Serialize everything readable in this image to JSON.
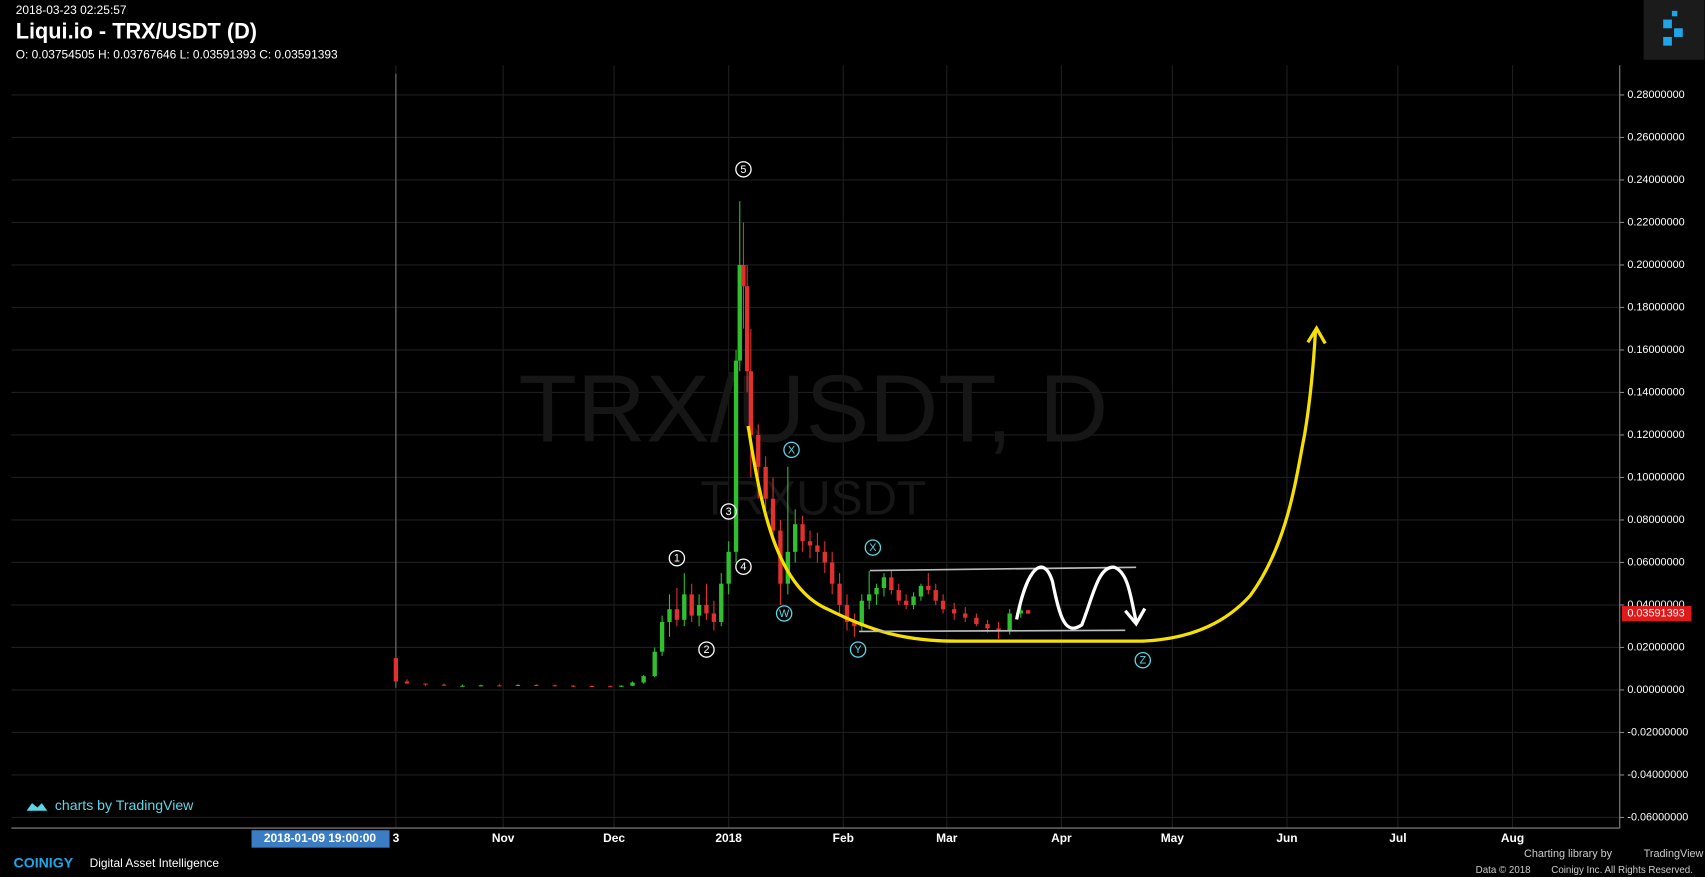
{
  "chart_data": {
    "type": "candlestick",
    "timestamp": "2018-03-23 02:25:57",
    "title": "Liqui.io - TRX/USDT (D)",
    "ohlc_text": "O: 0.03754505 H: 0.03767646 L: 0.03591393 C: 0.03591393",
    "watermark": "TRX/USDT, D",
    "watermark_sub": "TRXUSDT",
    "branding": "charts by TradingView",
    "crosshair_label": "2018-01-09 19:00:00",
    "last_price": 0.03591393,
    "up_color": "#2fbf2f",
    "down_color": "#e0312f",
    "footer": {
      "logo": "COINIGY",
      "tagline": "Digital Asset Intelligence",
      "library": "Charting library by",
      "library_name": "TradingView",
      "data": "Data © 2018",
      "rights": "Coinigy Inc. All Rights Reserved."
    },
    "xlim": [
      -102,
      333
    ],
    "xticks": [
      {
        "value": 2,
        "label": "3"
      },
      {
        "value": 31,
        "label": "Nov"
      },
      {
        "value": 61,
        "label": "Dec"
      },
      {
        "value": 92,
        "label": "2018"
      },
      {
        "value": 123,
        "label": "Feb"
      },
      {
        "value": 151,
        "label": "Mar"
      },
      {
        "value": 182,
        "label": "Apr"
      },
      {
        "value": 212,
        "label": "May"
      },
      {
        "value": 243,
        "label": "Jun"
      },
      {
        "value": 273,
        "label": "Jul"
      },
      {
        "value": 304,
        "label": "Aug"
      }
    ],
    "ylim": [
      -0.065,
      0.294
    ],
    "yticks": [
      {
        "value": -0.06,
        "label": "-0.06000000"
      },
      {
        "value": -0.04,
        "label": "-0.04000000"
      },
      {
        "value": -0.02,
        "label": "-0.02000000"
      },
      {
        "value": 0,
        "label": "0.00000000"
      },
      {
        "value": 0.02,
        "label": "0.02000000"
      },
      {
        "value": 0.04,
        "label": "0.04000000"
      },
      {
        "value": 0.06,
        "label": "0.06000000"
      },
      {
        "value": 0.08,
        "label": "0.08000000"
      },
      {
        "value": 0.1,
        "label": "0.10000000"
      },
      {
        "value": 0.12,
        "label": "0.12000000"
      },
      {
        "value": 0.14,
        "label": "0.14000000"
      },
      {
        "value": 0.16,
        "label": "0.16000000"
      },
      {
        "value": 0.18,
        "label": "0.18000000"
      },
      {
        "value": 0.2,
        "label": "0.20000000"
      },
      {
        "value": 0.22,
        "label": "0.22000000"
      },
      {
        "value": 0.24,
        "label": "0.24000000"
      },
      {
        "value": 0.26,
        "label": "0.26000000"
      },
      {
        "value": 0.28,
        "label": "0.28000000"
      }
    ],
    "grid": true,
    "x": [
      2,
      5,
      10,
      15,
      20,
      25,
      30,
      35,
      40,
      45,
      50,
      55,
      60,
      63,
      66,
      69,
      72,
      74,
      76,
      78,
      80,
      82,
      84,
      86,
      88,
      90,
      92,
      94,
      95,
      96,
      97,
      98,
      100,
      102,
      104,
      106,
      108,
      110,
      112,
      114,
      116,
      118,
      120,
      122,
      124,
      126,
      128,
      130,
      132,
      134,
      136,
      138,
      140,
      142,
      144,
      146,
      148,
      150,
      153,
      156,
      159,
      162,
      165,
      168,
      171,
      173
    ],
    "open": [
      0.015,
      0.004,
      0.003,
      0.0025,
      0.002,
      0.002,
      0.0022,
      0.0021,
      0.0024,
      0.0022,
      0.002,
      0.0019,
      0.0018,
      0.0017,
      0.002,
      0.0035,
      0.0065,
      0.018,
      0.032,
      0.038,
      0.033,
      0.045,
      0.035,
      0.04,
      0.036,
      0.032,
      0.05,
      0.065,
      0.155,
      0.2,
      0.19,
      0.15,
      0.12,
      0.105,
      0.09,
      0.075,
      0.05,
      0.065,
      0.078,
      0.07,
      0.068,
      0.065,
      0.06,
      0.05,
      0.04,
      0.032,
      0.03,
      0.042,
      0.045,
      0.048,
      0.053,
      0.047,
      0.042,
      0.04,
      0.044,
      0.049,
      0.047,
      0.042,
      0.038,
      0.036,
      0.034,
      0.031,
      0.029,
      0.028,
      0.036,
      0.03754505
    ],
    "high": [
      0.29,
      0.005,
      0.003,
      0.003,
      0.0025,
      0.0025,
      0.0026,
      0.0026,
      0.0027,
      0.0025,
      0.0023,
      0.0022,
      0.0021,
      0.0022,
      0.004,
      0.007,
      0.02,
      0.035,
      0.045,
      0.048,
      0.055,
      0.05,
      0.045,
      0.05,
      0.042,
      0.055,
      0.07,
      0.16,
      0.23,
      0.22,
      0.2,
      0.17,
      0.125,
      0.11,
      0.1,
      0.08,
      0.105,
      0.085,
      0.082,
      0.075,
      0.074,
      0.07,
      0.065,
      0.055,
      0.045,
      0.036,
      0.045,
      0.056,
      0.05,
      0.055,
      0.056,
      0.05,
      0.045,
      0.046,
      0.05,
      0.055,
      0.05,
      0.045,
      0.041,
      0.039,
      0.036,
      0.033,
      0.032,
      0.038,
      0.04,
      0.03767646
    ],
    "low": [
      0.001,
      0.003,
      0.002,
      0.002,
      0.0018,
      0.0018,
      0.002,
      0.0019,
      0.002,
      0.0019,
      0.0017,
      0.0016,
      0.0015,
      0.0015,
      0.0018,
      0.003,
      0.006,
      0.016,
      0.025,
      0.03,
      0.03,
      0.032,
      0.03,
      0.033,
      0.028,
      0.03,
      0.045,
      0.06,
      0.15,
      0.17,
      0.14,
      0.1,
      0.09,
      0.085,
      0.07,
      0.04,
      0.045,
      0.06,
      0.065,
      0.062,
      0.06,
      0.055,
      0.045,
      0.035,
      0.028,
      0.025,
      0.028,
      0.038,
      0.04,
      0.044,
      0.045,
      0.04,
      0.038,
      0.038,
      0.042,
      0.045,
      0.04,
      0.036,
      0.033,
      0.032,
      0.03,
      0.027,
      0.024,
      0.026,
      0.034,
      0.03591393
    ],
    "close": [
      0.004,
      0.003,
      0.0025,
      0.002,
      0.002,
      0.0022,
      0.0021,
      0.0024,
      0.0022,
      0.002,
      0.0019,
      0.0018,
      0.0017,
      0.002,
      0.0035,
      0.0065,
      0.018,
      0.032,
      0.038,
      0.033,
      0.045,
      0.035,
      0.04,
      0.036,
      0.032,
      0.05,
      0.065,
      0.155,
      0.2,
      0.19,
      0.15,
      0.12,
      0.105,
      0.09,
      0.075,
      0.05,
      0.065,
      0.078,
      0.07,
      0.068,
      0.065,
      0.06,
      0.05,
      0.04,
      0.032,
      0.03,
      0.042,
      0.045,
      0.048,
      0.053,
      0.047,
      0.042,
      0.04,
      0.044,
      0.049,
      0.047,
      0.042,
      0.038,
      0.036,
      0.034,
      0.031,
      0.029,
      0.028,
      0.036,
      0.0375,
      0.03591393
    ],
    "annotations": [
      {
        "text": "1",
        "x": 78,
        "y": 0.062,
        "color": "#ffffff"
      },
      {
        "text": "2",
        "x": 86,
        "y": 0.019,
        "color": "#ffffff"
      },
      {
        "text": "3",
        "x": 92,
        "y": 0.084,
        "color": "#ffffff"
      },
      {
        "text": "4",
        "x": 96,
        "y": 0.058,
        "color": "#ffffff"
      },
      {
        "text": "5",
        "x": 96,
        "y": 0.245,
        "color": "#ffffff"
      },
      {
        "text": "W",
        "x": 107,
        "y": 0.036,
        "color": "#5ad7e6"
      },
      {
        "text": "X",
        "x": 109,
        "y": 0.113,
        "color": "#5ad7e6"
      },
      {
        "text": "Y",
        "x": 127,
        "y": 0.019,
        "color": "#5ad7e6"
      },
      {
        "text": "X",
        "x": 131,
        "y": 0.067,
        "color": "#5ad7e6"
      },
      {
        "text": "Z",
        "x": 204,
        "y": 0.014,
        "color": "#5ad7e6"
      }
    ]
  }
}
